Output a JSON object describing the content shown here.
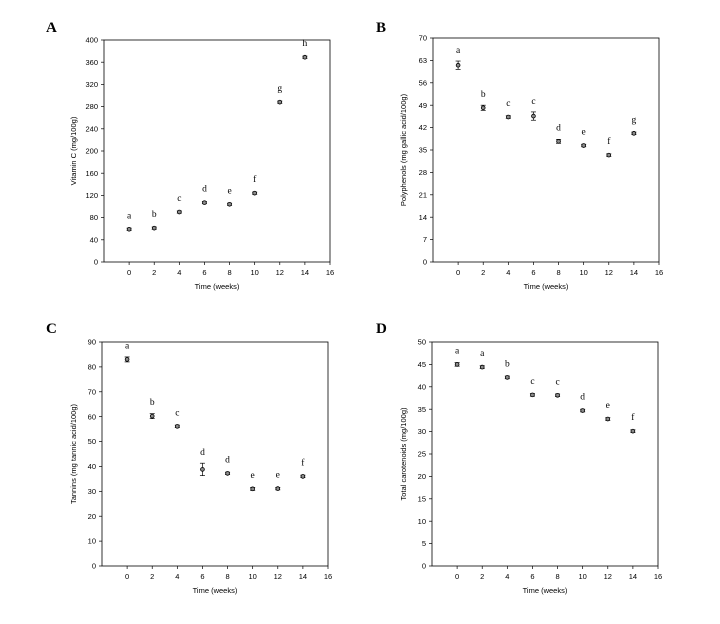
{
  "chart_data": [
    {
      "type": "scatter",
      "panel_label": "A",
      "xlabel": "Time (weeks)",
      "ylabel": "Vitamin C (mg/100g)",
      "xlim": [
        -2,
        16
      ],
      "ylim": [
        0,
        400
      ],
      "xticks": [
        0,
        2,
        4,
        6,
        8,
        10,
        12,
        14,
        16
      ],
      "yticks": [
        0,
        40,
        80,
        120,
        160,
        200,
        240,
        280,
        320,
        360,
        400
      ],
      "x": [
        0,
        2,
        4,
        6,
        8,
        10,
        12,
        14
      ],
      "values": [
        59,
        61,
        90,
        107,
        104,
        124,
        288,
        369
      ],
      "errors": [
        2,
        2,
        2,
        2,
        2,
        2,
        2,
        2
      ],
      "annotations": [
        "a",
        "b",
        "c",
        "d",
        "e",
        "f",
        "g",
        "h"
      ]
    },
    {
      "type": "scatter",
      "panel_label": "B",
      "xlabel": "Time (weeks)",
      "ylabel": "Polyphenols (mg gallic acid/100g)",
      "xlim": [
        -2,
        16
      ],
      "ylim": [
        0,
        70
      ],
      "xticks": [
        0,
        2,
        4,
        6,
        8,
        10,
        12,
        14,
        16
      ],
      "yticks": [
        0,
        7,
        14,
        21,
        28,
        35,
        42,
        49,
        56,
        63,
        70
      ],
      "x": [
        0,
        2,
        4,
        6,
        8,
        10,
        12,
        14
      ],
      "values": [
        61.5,
        48.2,
        45.3,
        45.6,
        37.7,
        36.4,
        33.4,
        40.2
      ],
      "errors": [
        1.3,
        0.8,
        0.4,
        1.3,
        0.6,
        0.4,
        0.4,
        0.4
      ],
      "annotations": [
        "a",
        "b",
        "c",
        "c",
        "d",
        "e",
        "f",
        "g"
      ]
    },
    {
      "type": "scatter",
      "panel_label": "C",
      "xlabel": "Time (weeks)",
      "ylabel": "Tannins (mg tannic acid/100g)",
      "xlim": [
        -2,
        16
      ],
      "ylim": [
        0,
        90
      ],
      "xticks": [
        0,
        2,
        4,
        6,
        8,
        10,
        12,
        14,
        16
      ],
      "yticks": [
        0,
        10,
        20,
        30,
        40,
        50,
        60,
        70,
        80,
        90
      ],
      "x": [
        0,
        2,
        4,
        6,
        8,
        10,
        12,
        14
      ],
      "values": [
        83,
        60.2,
        56.1,
        38.8,
        37.2,
        31,
        31.1,
        36
      ],
      "errors": [
        1,
        1,
        0.5,
        2.5,
        0.5,
        0.6,
        0.5,
        0.5
      ],
      "annotations": [
        "a",
        "b",
        "c",
        "d",
        "d",
        "e",
        "e",
        "f"
      ]
    },
    {
      "type": "scatter",
      "panel_label": "D",
      "xlabel": "Time (weeks)",
      "ylabel": "Total carotenoids (mg/100g)",
      "xlim": [
        -2,
        16
      ],
      "ylim": [
        0,
        50
      ],
      "xticks": [
        0,
        2,
        4,
        6,
        8,
        10,
        12,
        14,
        16
      ],
      "yticks": [
        0,
        5,
        10,
        15,
        20,
        25,
        30,
        35,
        40,
        45,
        50
      ],
      "x": [
        0,
        2,
        4,
        6,
        8,
        10,
        12,
        14
      ],
      "values": [
        45,
        44.4,
        42.1,
        38.2,
        38.1,
        34.7,
        32.8,
        30.1
      ],
      "errors": [
        0.4,
        0.3,
        0.3,
        0.3,
        0.3,
        0.3,
        0.3,
        0.3
      ],
      "annotations": [
        "a",
        "a",
        "b",
        "c",
        "c",
        "d",
        "e",
        "f"
      ]
    }
  ]
}
